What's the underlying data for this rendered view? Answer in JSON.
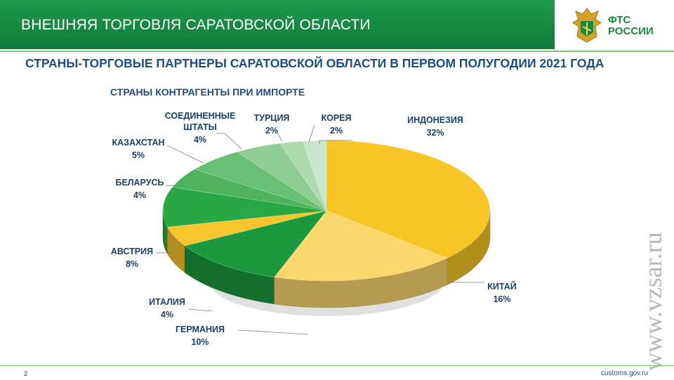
{
  "header": {
    "title": "ВНЕШНЯЯ ТОРГОВЛЯ САРАТОВСКОЙ ОБЛАСТИ"
  },
  "logo": {
    "line1": "ФТС",
    "line2": "РОССИИ"
  },
  "subtitle": "СТРАНЫ-ТОРГОВЫЕ ПАРТНЕРЫ САРАТОВСКОЙ ОБЛАСТИ В ПЕРВОМ ПОЛУГОДИИ 2021 ГОДА",
  "watermark": "www.vzsar.ru",
  "footer": {
    "page": "2",
    "site": "customs.gov.ru"
  },
  "colors": {
    "header": "#138640",
    "yellow": "#f5c21b",
    "green": "#1c9a3f",
    "title_blue": "#1a4e80"
  },
  "chart_data": {
    "type": "pie",
    "title": "СТРАНЫ КОНТРАГЕНТЫ ПРИ ИМПОРТЕ",
    "unit": "%",
    "slices": [
      {
        "label": "ИНДОНЕЗИЯ",
        "value": 32,
        "value_label": "32%",
        "color": "#f7c626"
      },
      {
        "label": "КИТАЙ",
        "value": 16,
        "value_label": "16%",
        "color": "#fbd76c"
      },
      {
        "label": "ГЕРМАНИЯ",
        "value": 10,
        "value_label": "10%",
        "color": "#1a9a3d"
      },
      {
        "label": "ИТАЛИЯ",
        "value": 4,
        "value_label": "4%",
        "color": "#f8c52a"
      },
      {
        "label": "АВСТРИЯ",
        "value": 8,
        "value_label": "8%",
        "color": "#2aa845"
      },
      {
        "label": "БЕЛАРУСЬ",
        "value": 4,
        "value_label": "4%",
        "color": "#4fb35e"
      },
      {
        "label": "КАЗАХСТАН",
        "value": 5,
        "value_label": "5%",
        "color": "#69bf74"
      },
      {
        "label": "СОЕДИНЕННЫЕ ШТАТЫ",
        "value": 4,
        "value_label": "4%",
        "color": "#8ecd93"
      },
      {
        "label": "ТУРЦИЯ",
        "value": 2,
        "value_label": "2%",
        "color": "#acd9ae"
      },
      {
        "label": "КОРЕЯ",
        "value": 2,
        "value_label": "2%",
        "color": "#c8e6c9"
      }
    ]
  }
}
